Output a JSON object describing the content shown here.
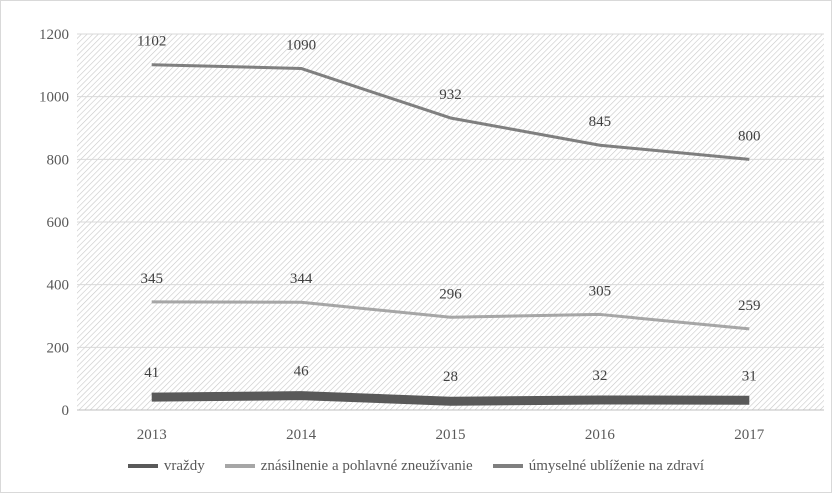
{
  "chart_data": {
    "type": "line",
    "title": "",
    "xlabel": "",
    "ylabel": "",
    "ylim": [
      0,
      1200
    ],
    "y_ticks": [
      "0",
      "200",
      "400",
      "600",
      "800",
      "1000",
      "1200"
    ],
    "categories": [
      "2013",
      "2014",
      "2015",
      "2016",
      "2017"
    ],
    "grid": true,
    "legend_position": "bottom",
    "series": [
      {
        "name": "vraždy",
        "values": [
          41,
          46,
          28,
          32,
          31
        ],
        "color": "#595959"
      },
      {
        "name": "znásilnenie a pohlavné zneužívanie",
        "values": [
          345,
          344,
          296,
          305,
          259
        ],
        "color": "#a6a6a6"
      },
      {
        "name": "úmyselné ublíženie na zdraví",
        "values": [
          1102,
          1090,
          932,
          845,
          800
        ],
        "color": "#7f7f7f"
      }
    ]
  }
}
